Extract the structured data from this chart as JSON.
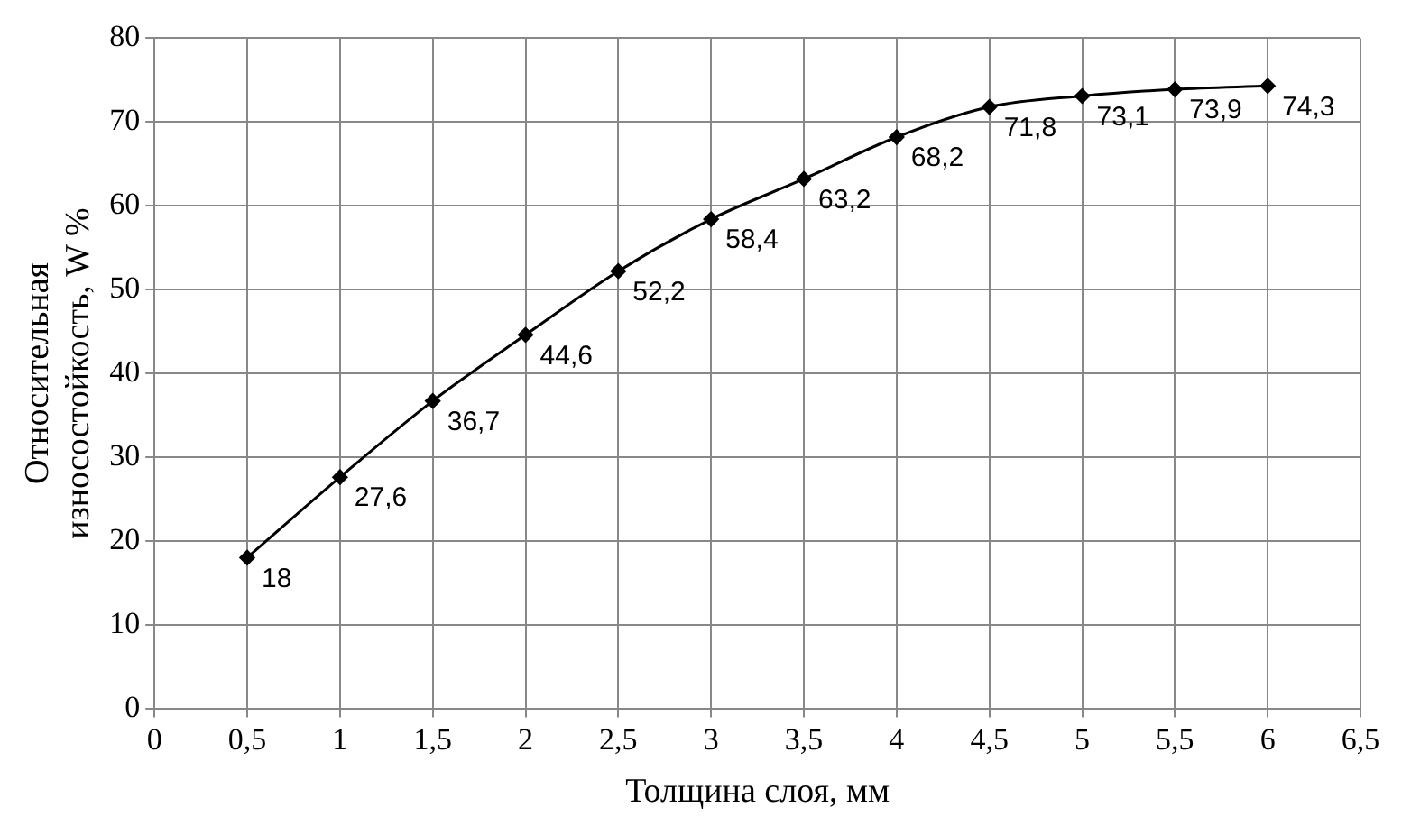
{
  "chart_data": {
    "type": "line",
    "xlabel": "Толщина слоя, мм",
    "ylabel": "Относительная износостойкость, W %",
    "x": [
      0.5,
      1,
      1.5,
      2,
      2.5,
      3,
      3.5,
      4,
      4.5,
      5,
      5.5,
      6
    ],
    "series": [
      {
        "color": "#000000",
        "values": [
          18,
          27.6,
          36.7,
          44.6,
          52.2,
          58.4,
          63.2,
          68.2,
          71.8,
          73.1,
          73.9,
          74.3
        ],
        "value_labels": [
          "18",
          "27,6",
          "36,7",
          "44,6",
          "52,2",
          "58,4",
          "63,2",
          "68,2",
          "71,8",
          "73,1",
          "73,9",
          "74,3"
        ]
      }
    ],
    "xlim": [
      0,
      6.5
    ],
    "xticks": [
      0,
      {
        "value": 0.5,
        "label": "0,5"
      },
      1,
      {
        "value": 1.5,
        "label": "1,5"
      },
      2,
      {
        "value": 2.5,
        "label": "2,5"
      },
      3,
      {
        "value": 3.5,
        "label": "3,5"
      },
      4,
      {
        "value": 4.5,
        "label": "4,5"
      },
      5,
      {
        "value": 5.5,
        "label": "5,5"
      },
      6,
      {
        "value": 6.5,
        "label": "6,5"
      }
    ],
    "ylim": [
      0,
      80
    ],
    "yticks": [
      0,
      10,
      20,
      30,
      40,
      50,
      60,
      70,
      80
    ],
    "grid": true,
    "legend": false,
    "marker": "diamond",
    "line_style": "solid"
  }
}
